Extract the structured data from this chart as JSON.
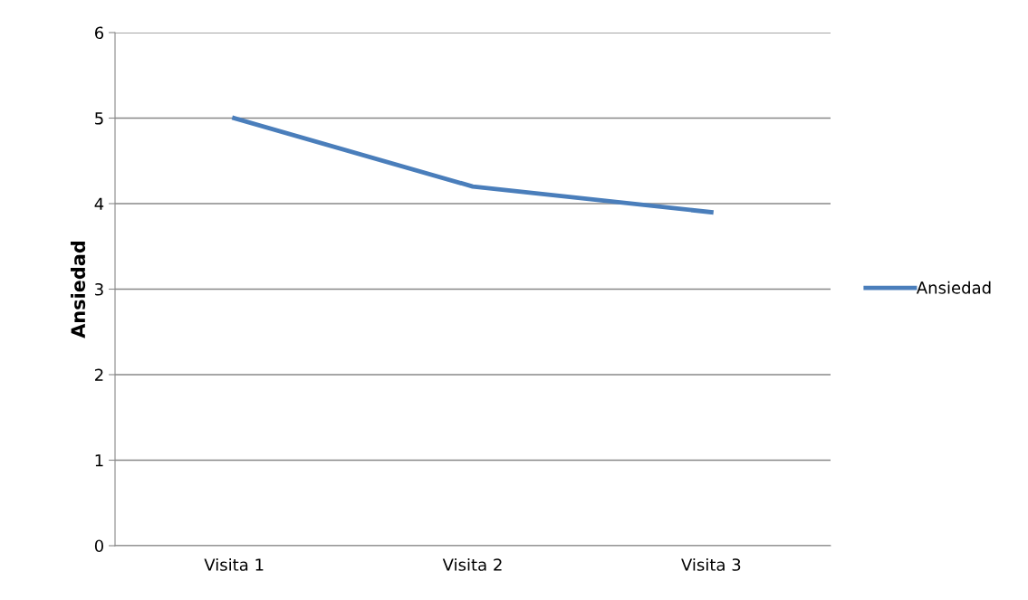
{
  "chart_data": {
    "type": "line",
    "ylabel": "Ansiedad",
    "categories": [
      "Visita 1",
      "Visita 2",
      "Visita 3"
    ],
    "series": [
      {
        "name": "Ansiedad",
        "color": "#4a7ebb",
        "values": [
          5,
          4.2,
          3.9
        ]
      }
    ],
    "ylim": [
      0,
      6
    ],
    "yticks": [
      0,
      1,
      2,
      3,
      4,
      5,
      6
    ],
    "grid": "y",
    "legend": "right",
    "marker": "none",
    "line_style": "solid"
  }
}
